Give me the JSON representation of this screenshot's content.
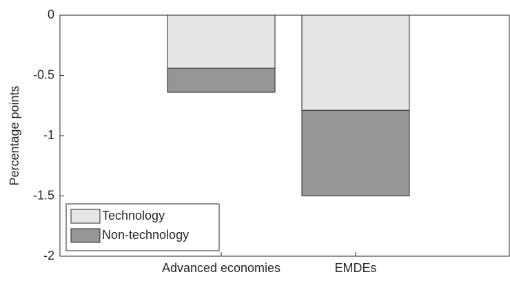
{
  "chart_data": {
    "type": "stacked-bar",
    "categories": [
      "Advanced economies",
      "EMDEs"
    ],
    "series": [
      {
        "name": "Technology",
        "color": "#e6e6e6",
        "values": [
          -0.44,
          -0.79
        ]
      },
      {
        "name": "Non-technology",
        "color": "#969696",
        "values": [
          -0.2,
          -0.71
        ]
      }
    ],
    "ylabel": "Percentage points",
    "ylim": [
      -2,
      0
    ],
    "yticks": [
      -2,
      -1.5,
      -1,
      -0.5,
      0
    ],
    "legend": "lower left"
  }
}
